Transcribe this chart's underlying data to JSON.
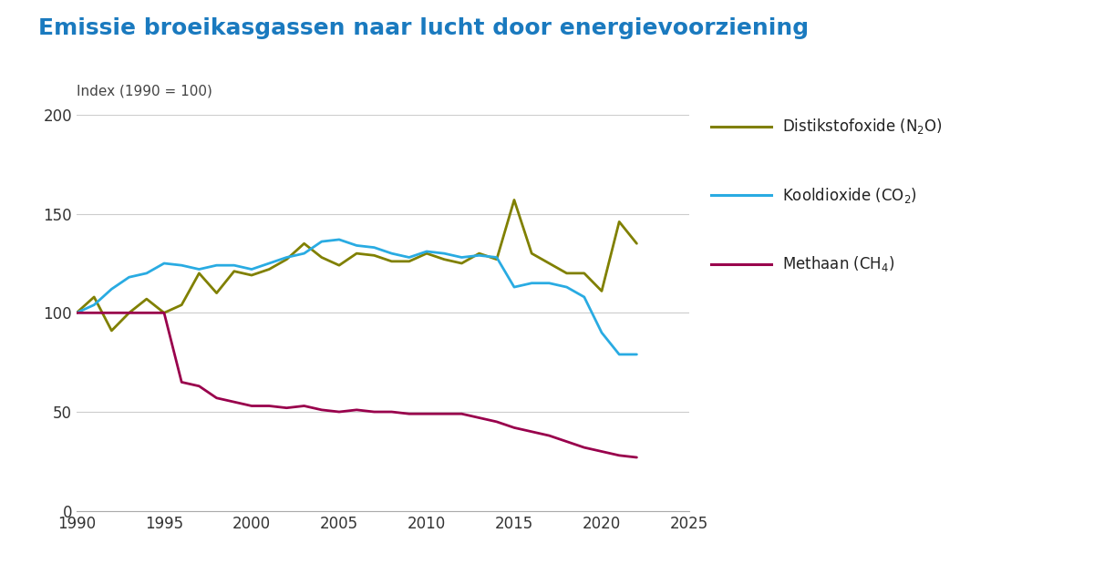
{
  "title": "Emissie broeikasgassen naar lucht door energievoorziening",
  "ylabel": "Index (1990 = 100)",
  "background_color": "#ffffff",
  "title_color": "#1a7abf",
  "title_fontsize": 18,
  "xlim": [
    1990,
    2025
  ],
  "ylim": [
    0,
    200
  ],
  "yticks": [
    0,
    50,
    100,
    150,
    200
  ],
  "xticks": [
    1990,
    1995,
    2000,
    2005,
    2010,
    2015,
    2020,
    2025
  ],
  "grid_color": "#cccccc",
  "series": [
    {
      "label": "Distikstofoxide (N₂O)",
      "color": "#808000",
      "linewidth": 2.0,
      "data_x": [
        1990,
        1991,
        1992,
        1993,
        1994,
        1995,
        1996,
        1997,
        1998,
        1999,
        2000,
        2001,
        2002,
        2003,
        2004,
        2005,
        2006,
        2007,
        2008,
        2009,
        2010,
        2011,
        2012,
        2013,
        2014,
        2015,
        2016,
        2017,
        2018,
        2019,
        2020,
        2021,
        2022
      ],
      "data_y": [
        100,
        108,
        91,
        100,
        107,
        100,
        104,
        120,
        110,
        121,
        119,
        122,
        127,
        135,
        128,
        124,
        130,
        129,
        126,
        126,
        130,
        127,
        125,
        130,
        127,
        157,
        130,
        125,
        120,
        120,
        111,
        146,
        135
      ]
    },
    {
      "label": "Kooldioxide (CO₂)",
      "color": "#29abe2",
      "linewidth": 2.0,
      "data_x": [
        1990,
        1991,
        1992,
        1993,
        1994,
        1995,
        1996,
        1997,
        1998,
        1999,
        2000,
        2001,
        2002,
        2003,
        2004,
        2005,
        2006,
        2007,
        2008,
        2009,
        2010,
        2011,
        2012,
        2013,
        2014,
        2015,
        2016,
        2017,
        2018,
        2019,
        2020,
        2021,
        2022
      ],
      "data_y": [
        100,
        104,
        112,
        118,
        120,
        125,
        124,
        122,
        124,
        124,
        122,
        125,
        128,
        130,
        136,
        137,
        134,
        133,
        130,
        128,
        131,
        130,
        128,
        129,
        128,
        113,
        115,
        115,
        113,
        108,
        90,
        79,
        79
      ]
    },
    {
      "label": "Methaan (CH₄)",
      "color": "#99004c",
      "linewidth": 2.0,
      "data_x": [
        1990,
        1991,
        1992,
        1993,
        1994,
        1995,
        1996,
        1997,
        1998,
        1999,
        2000,
        2001,
        2002,
        2003,
        2004,
        2005,
        2006,
        2007,
        2008,
        2009,
        2010,
        2011,
        2012,
        2013,
        2014,
        2015,
        2016,
        2017,
        2018,
        2019,
        2020,
        2021,
        2022
      ],
      "data_y": [
        100,
        100,
        100,
        100,
        100,
        100,
        65,
        63,
        57,
        55,
        53,
        53,
        52,
        53,
        51,
        50,
        51,
        50,
        50,
        49,
        49,
        49,
        49,
        47,
        45,
        42,
        40,
        38,
        35,
        32,
        30,
        28,
        27
      ]
    }
  ],
  "legend_texts": [
    "Distikstofoxide (N$_2$O)",
    "Kooldioxide (CO$_2$)",
    "Methaan (CH$_4$)"
  ],
  "legend_colors": [
    "#808000",
    "#29abe2",
    "#99004c"
  ]
}
